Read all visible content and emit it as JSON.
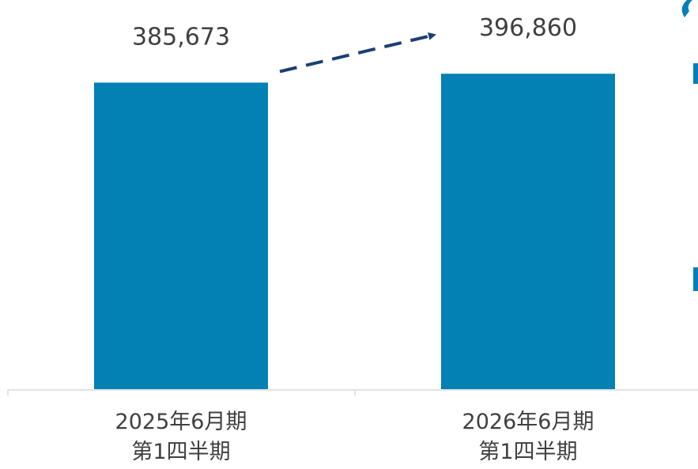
{
  "chart_data": {
    "type": "bar",
    "categories": [
      [
        "2025年6月期",
        "第1四半期"
      ],
      [
        "2026年6月期",
        "第1四半期"
      ]
    ],
    "values": [
      385673,
      396860
    ],
    "value_labels": [
      "385,673",
      "396,860"
    ],
    "ylim": [
      0,
      410000
    ],
    "grid": false,
    "legend": "none",
    "bar_color": "#0380B4",
    "arrow_color": "#1B3F72",
    "axis_color": "#D9D9D9",
    "label_color": "#404040",
    "accent_color": "#0380B4"
  }
}
